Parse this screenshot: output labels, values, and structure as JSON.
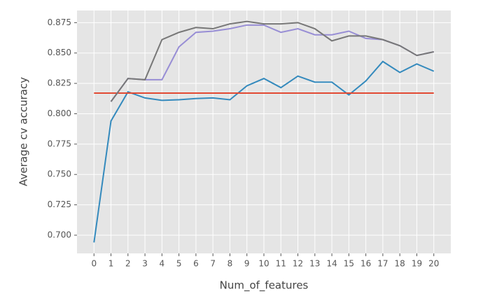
{
  "chart_data": {
    "type": "line",
    "xlabel": "Num_of_features",
    "ylabel": "Average cv accuracy",
    "x": [
      0,
      1,
      2,
      3,
      4,
      5,
      6,
      7,
      8,
      9,
      10,
      11,
      12,
      13,
      14,
      15,
      16,
      17,
      18,
      19,
      20
    ],
    "series": [
      {
        "color": "#348ABD",
        "values": [
          0.694,
          0.794,
          0.818,
          0.813,
          0.811,
          0.8115,
          0.8125,
          0.813,
          0.8115,
          0.823,
          0.829,
          0.8215,
          0.831,
          0.826,
          0.826,
          0.8155,
          0.827,
          0.843,
          0.834,
          0.841,
          0.835
        ]
      },
      {
        "color": "#E24A33",
        "values": [
          0.817,
          0.817,
          0.817,
          0.817,
          0.817,
          0.817,
          0.817,
          0.817,
          0.817,
          0.817,
          0.817,
          0.817,
          0.817,
          0.817,
          0.817,
          0.817,
          0.817,
          0.817,
          0.817,
          0.817,
          0.817
        ]
      },
      {
        "color": "#988ED5",
        "values": [
          null,
          0.81,
          0.829,
          0.828,
          0.828,
          0.855,
          0.867,
          0.868,
          0.87,
          0.873,
          0.873,
          0.867,
          0.87,
          0.865,
          0.865,
          0.868,
          0.862,
          0.861,
          0.856,
          0.848,
          0.851
        ]
      },
      {
        "color": "#777777",
        "values": [
          null,
          0.81,
          0.829,
          0.828,
          0.861,
          0.867,
          0.871,
          0.87,
          0.874,
          0.876,
          0.874,
          0.874,
          0.875,
          0.87,
          0.86,
          0.864,
          0.864,
          0.861,
          0.856,
          0.848,
          0.851
        ]
      }
    ],
    "xlim": [
      -1,
      21
    ],
    "ylim": [
      0.685,
      0.885
    ],
    "xticks": [
      0,
      1,
      2,
      3,
      4,
      5,
      6,
      7,
      8,
      9,
      10,
      11,
      12,
      13,
      14,
      15,
      16,
      17,
      18,
      19,
      20
    ],
    "yticks": [
      {
        "value": 0.7,
        "label": "0.700"
      },
      {
        "value": 0.725,
        "label": "0.725"
      },
      {
        "value": 0.75,
        "label": "0.750"
      },
      {
        "value": 0.775,
        "label": "0.775"
      },
      {
        "value": 0.8,
        "label": "0.800"
      },
      {
        "value": 0.825,
        "label": "0.825"
      },
      {
        "value": 0.85,
        "label": "0.850"
      },
      {
        "value": 0.875,
        "label": "0.875"
      }
    ],
    "grid": true,
    "background": "#E5E5E5"
  }
}
